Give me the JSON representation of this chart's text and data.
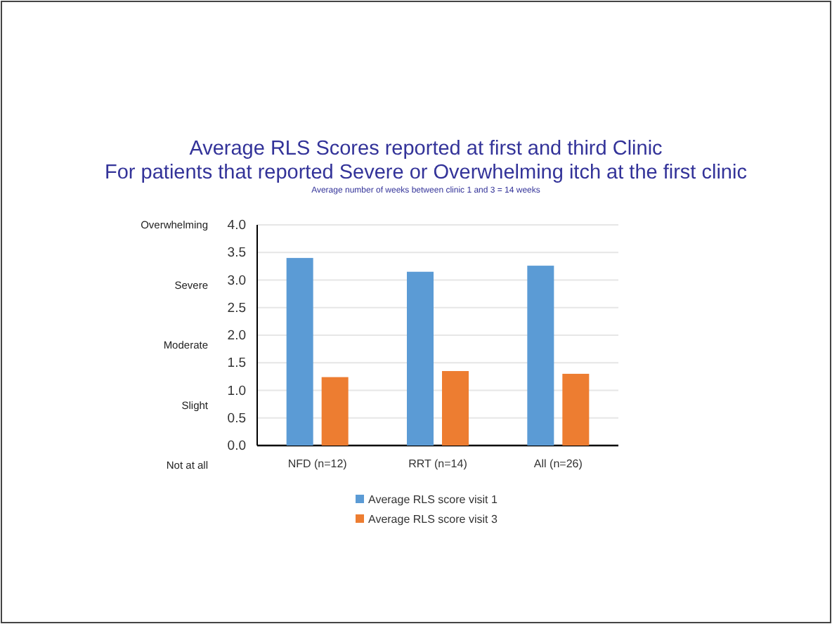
{
  "chart_data": {
    "type": "bar",
    "title": "Average RLS Scores reported at first and third Clinic",
    "subtitle": "For patients that reported Severe or Overwhelming itch at the first clinic",
    "annotations": [
      "Average number of weeks between clinic 1 and 3 = 14 weeks",
      "Overwhelming",
      "Severe",
      "Moderate",
      "Slight",
      "Not at all"
    ],
    "categories": [
      "NFD (n=12)",
      "RRT (n=14)",
      "All (n=26)"
    ],
    "series": [
      {
        "name": "Average RLS score visit 1",
        "color": "#5b9bd5",
        "values": [
          3.4,
          3.15,
          3.26
        ]
      },
      {
        "name": "Average RLS score visit 3",
        "color": "#ed7d31",
        "values": [
          1.24,
          1.35,
          1.3
        ]
      }
    ],
    "ylim": [
      0,
      4
    ],
    "yticks": [
      {
        "value": 0,
        "label": "0.0"
      },
      {
        "value": 0.5,
        "label": "0.5"
      },
      {
        "value": 1,
        "label": "1.0"
      },
      {
        "value": 1.5,
        "label": "1.5"
      },
      {
        "value": 2,
        "label": "2.0"
      },
      {
        "value": 2.5,
        "label": "2.5"
      },
      {
        "value": 3,
        "label": "3.0"
      },
      {
        "value": 3.5,
        "label": "3.5"
      },
      {
        "value": 4,
        "label": "4.0"
      }
    ],
    "grid": "y",
    "legend": "bottom"
  }
}
